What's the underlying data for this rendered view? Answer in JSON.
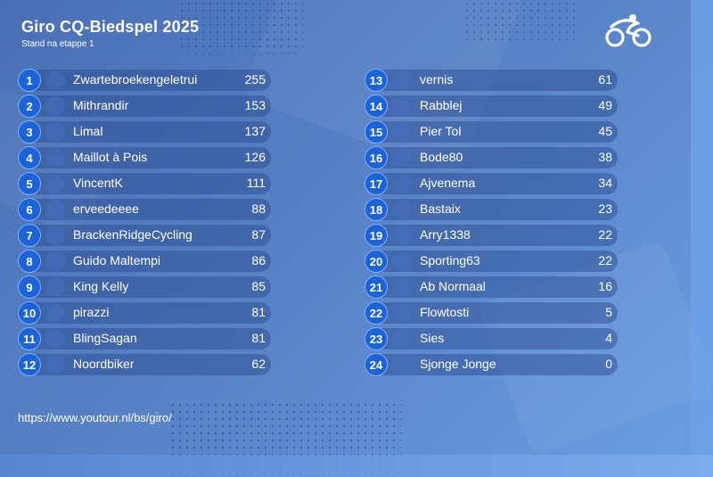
{
  "header": {
    "title": "Giro CQ-Biedspel 2025",
    "subtitle": "Stand na etappe 1"
  },
  "logo_icon": "cycling-logo-icon",
  "standings_left": [
    {
      "rank": "1",
      "name": "Zwartebroekengeletrui",
      "score": "255"
    },
    {
      "rank": "2",
      "name": "Mithrandir",
      "score": "153"
    },
    {
      "rank": "3",
      "name": "Limal",
      "score": "137"
    },
    {
      "rank": "4",
      "name": "Maillot à Pois",
      "score": "126"
    },
    {
      "rank": "5",
      "name": "VincentK",
      "score": "111"
    },
    {
      "rank": "6",
      "name": "erveedeeee",
      "score": "88"
    },
    {
      "rank": "7",
      "name": "BrackenRidgeCycling",
      "score": "87"
    },
    {
      "rank": "8",
      "name": "Guido Maltempi",
      "score": "86"
    },
    {
      "rank": "9",
      "name": "King Kelly",
      "score": "85"
    },
    {
      "rank": "10",
      "name": "pirazzi",
      "score": "81"
    },
    {
      "rank": "11",
      "name": "BlingSagan",
      "score": "81"
    },
    {
      "rank": "12",
      "name": "Noordbiker",
      "score": "62"
    }
  ],
  "standings_right": [
    {
      "rank": "13",
      "name": "vernis",
      "score": "61"
    },
    {
      "rank": "14",
      "name": "Rabblej",
      "score": "49"
    },
    {
      "rank": "15",
      "name": "Pier Tol",
      "score": "45"
    },
    {
      "rank": "16",
      "name": "Bode80",
      "score": "38"
    },
    {
      "rank": "17",
      "name": "Ajvenema",
      "score": "34"
    },
    {
      "rank": "18",
      "name": "Bastaix",
      "score": "23"
    },
    {
      "rank": "19",
      "name": "Arry1338",
      "score": "22"
    },
    {
      "rank": "20",
      "name": "Sporting63",
      "score": "22"
    },
    {
      "rank": "21",
      "name": "Ab Normaal",
      "score": "16"
    },
    {
      "rank": "22",
      "name": "Flowtosti",
      "score": "5"
    },
    {
      "rank": "23",
      "name": "Sies",
      "score": "4"
    },
    {
      "rank": "24",
      "name": "Sjonge Jonge",
      "score": "0"
    }
  ],
  "footer": {
    "url": "https://www.youtour.nl/bs/giro/"
  },
  "colors": {
    "rank_badge": "#1b63d6",
    "background": "#4a6fb5"
  }
}
